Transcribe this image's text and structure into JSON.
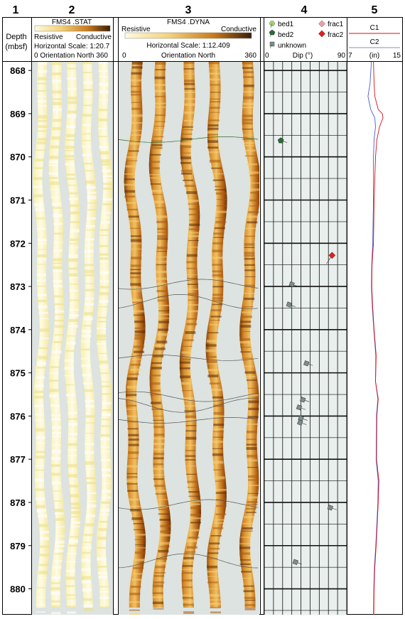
{
  "tracks": {
    "numbers": [
      "1",
      "2",
      "3",
      "4",
      "5"
    ],
    "depth": {
      "label_line1": "Depth",
      "label_line2": "(mbsf)"
    },
    "static": {
      "title": "FMS4 .STAT",
      "resistive": "Resistive",
      "conductive": "Conductive",
      "scale": "Horizontal Scale: 1:20.7",
      "orientation": "0 Orientation North 360"
    },
    "dynamic": {
      "title": "FMS4 .DYNA",
      "resistive": "Resistive",
      "conductive": "Conductive",
      "scale": "Horizontal Scale:  1:12.409",
      "orient_min": "0",
      "orient_label": "Orientation North",
      "orient_max": "360"
    },
    "dip": {
      "legend": [
        "bed1",
        "bed2",
        "unknown",
        "frac1",
        "frac2"
      ],
      "axis_min": "0",
      "axis_label": "Dip (°)",
      "axis_max": "90"
    },
    "caliper": {
      "c1": "C1",
      "c2": "C2",
      "axis_min": "7",
      "axis_label": "(in)",
      "axis_max": "15"
    }
  },
  "colors": {
    "bed1": "#a6d66a",
    "bed2": "#2f6b2f",
    "unknown": "#7f8c8d",
    "frac1": "#e8a0a8",
    "frac2": "#e02020",
    "c1": "#d0101a",
    "c2": "#4a5ad0",
    "pad_background": "#dde3e0",
    "dip_background": "#e8efec"
  },
  "chart_data": {
    "type": "scatter",
    "depth_range": [
      867.8,
      880.6
    ],
    "depth_ticks": [
      "868",
      "869",
      "870",
      "871",
      "872",
      "873",
      "874",
      "875",
      "876",
      "877",
      "878",
      "879",
      "880"
    ],
    "dip_xlim": [
      0,
      90
    ],
    "caliper_xlim": [
      7,
      15
    ],
    "dip_points": [
      {
        "depth": 869.62,
        "dip": 18,
        "type": "bed2"
      },
      {
        "depth": 872.28,
        "dip": 74,
        "type": "frac2"
      },
      {
        "depth": 872.95,
        "dip": 30,
        "type": "unknown"
      },
      {
        "depth": 873.42,
        "dip": 27,
        "type": "unknown"
      },
      {
        "depth": 874.78,
        "dip": 46,
        "type": "unknown"
      },
      {
        "depth": 875.62,
        "dip": 42,
        "type": "unknown"
      },
      {
        "depth": 875.8,
        "dip": 38,
        "type": "unknown"
      },
      {
        "depth": 876.05,
        "dip": 40,
        "type": "unknown"
      },
      {
        "depth": 876.15,
        "dip": 39,
        "type": "unknown"
      },
      {
        "depth": 878.12,
        "dip": 72,
        "type": "unknown"
      },
      {
        "depth": 879.38,
        "dip": 34,
        "type": "unknown"
      }
    ],
    "caliper_c1": [
      [
        867.8,
        10.8
      ],
      [
        868.3,
        10.9
      ],
      [
        868.6,
        11.0
      ],
      [
        868.9,
        11.5
      ],
      [
        869.0,
        12.1
      ],
      [
        869.1,
        12.2
      ],
      [
        869.3,
        11.7
      ],
      [
        869.6,
        11.3
      ],
      [
        870.0,
        11.1
      ],
      [
        871.0,
        10.9
      ],
      [
        872.0,
        10.8
      ],
      [
        872.5,
        10.6
      ],
      [
        873.0,
        10.55
      ],
      [
        873.5,
        10.7
      ],
      [
        874.0,
        10.9
      ],
      [
        874.6,
        11.2
      ],
      [
        875.2,
        11.1
      ],
      [
        875.6,
        11.5
      ],
      [
        876.0,
        11.3
      ],
      [
        877.0,
        11.25
      ],
      [
        877.5,
        11.6
      ],
      [
        878.0,
        11.5
      ],
      [
        878.5,
        11.35
      ],
      [
        879.0,
        11.2
      ],
      [
        879.5,
        11.0
      ],
      [
        880.0,
        10.9
      ],
      [
        880.6,
        10.85
      ]
    ],
    "caliper_c2": [
      [
        867.8,
        10.5
      ],
      [
        868.3,
        10.3
      ],
      [
        868.6,
        10.0
      ],
      [
        868.9,
        10.4
      ],
      [
        869.1,
        11.0
      ],
      [
        869.3,
        11.1
      ],
      [
        869.6,
        10.9
      ],
      [
        870.0,
        10.8
      ],
      [
        871.0,
        10.8
      ],
      [
        872.0,
        10.7
      ],
      [
        872.5,
        10.55
      ],
      [
        873.0,
        10.5
      ],
      [
        873.5,
        10.65
      ],
      [
        874.0,
        10.85
      ],
      [
        874.6,
        11.15
      ],
      [
        875.2,
        11.1
      ],
      [
        875.6,
        11.45
      ],
      [
        876.0,
        11.25
      ],
      [
        877.0,
        11.2
      ],
      [
        877.5,
        11.5
      ],
      [
        878.0,
        11.45
      ],
      [
        878.5,
        11.3
      ],
      [
        879.0,
        11.15
      ],
      [
        879.5,
        10.95
      ],
      [
        880.0,
        10.85
      ],
      [
        880.6,
        10.8
      ]
    ]
  }
}
